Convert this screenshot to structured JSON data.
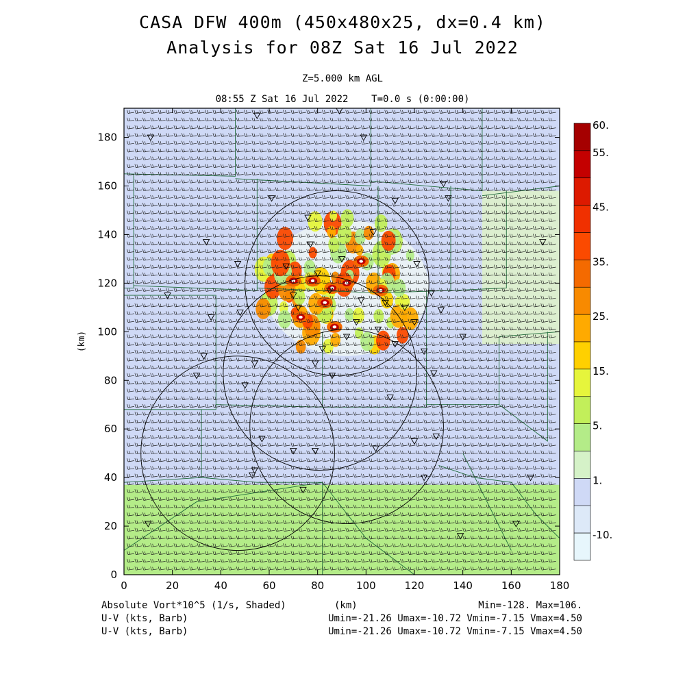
{
  "header": {
    "title_line1": "CASA DFW 400m (450x480x25, dx=0.4 km)",
    "title_line2": "Analysis for 08Z Sat 16 Jul 2022",
    "level": "Z=5.000 km AGL",
    "valid_time": "08:55 Z Sat 16 Jul 2022    T=0.0 s (0:00:00)"
  },
  "footer": {
    "field_label": "Absolute Vort*10^5 (1/s, Shaded)",
    "xunit_label": "(km)",
    "min_max": "Min=-128. Max=106.",
    "barb_label_1": "U-V (kts, Barb)",
    "barb_stats_1": "Umin=-21.26 Umax=-10.72 Vmin=-7.15 Vmax=4.50",
    "barb_label_2": "U-V (kts, Barb)",
    "barb_stats_2": "Umin=-21.26 Umax=-10.72 Vmin=-7.15 Vmax=4.50"
  },
  "colors": {
    "frame": "#000000",
    "county_lines": "#1f6b3a",
    "barbs": "#202020"
  },
  "chart_data": {
    "type": "heatmap",
    "xlabel": "(km)",
    "ylabel": "(km)",
    "xlim": [
      0,
      180
    ],
    "ylim": [
      0,
      192
    ],
    "xticks": [
      0,
      20,
      40,
      60,
      80,
      100,
      120,
      140,
      160,
      180
    ],
    "yticks": [
      0,
      20,
      40,
      60,
      80,
      100,
      120,
      140,
      160,
      180
    ],
    "colorbar": {
      "labels": [
        "60.",
        "55.",
        "45.",
        "35.",
        "25.",
        "15.",
        "5.",
        "1.",
        "-10."
      ],
      "levels": [
        60,
        55,
        50,
        45,
        40,
        35,
        30,
        25,
        20,
        15,
        10,
        5,
        1,
        0,
        -10
      ],
      "colors": [
        "#a50000",
        "#c40000",
        "#dd1a00",
        "#f03000",
        "#fb4a00",
        "#f46a00",
        "#f88a00",
        "#ffaa00",
        "#ffd000",
        "#e6f53c",
        "#c2ef5a",
        "#b4ec88",
        "#d5f2c8",
        "#cfd9f6",
        "#dde9f8",
        "#e7f6fc"
      ]
    },
    "radar_range_rings": [
      {
        "cx": 88,
        "cy": 120,
        "r": 38
      },
      {
        "cx": 81,
        "cy": 83,
        "r": 40
      },
      {
        "cx": 92,
        "cy": 61,
        "r": 40
      },
      {
        "cx": 47,
        "cy": 50,
        "r": 40
      }
    ],
    "wind": {
      "u_range": [
        -21.26,
        -10.72
      ],
      "v_range": [
        -7.15,
        4.5
      ],
      "units": "kts"
    },
    "statistics": {
      "min": -128,
      "max": 106
    }
  }
}
